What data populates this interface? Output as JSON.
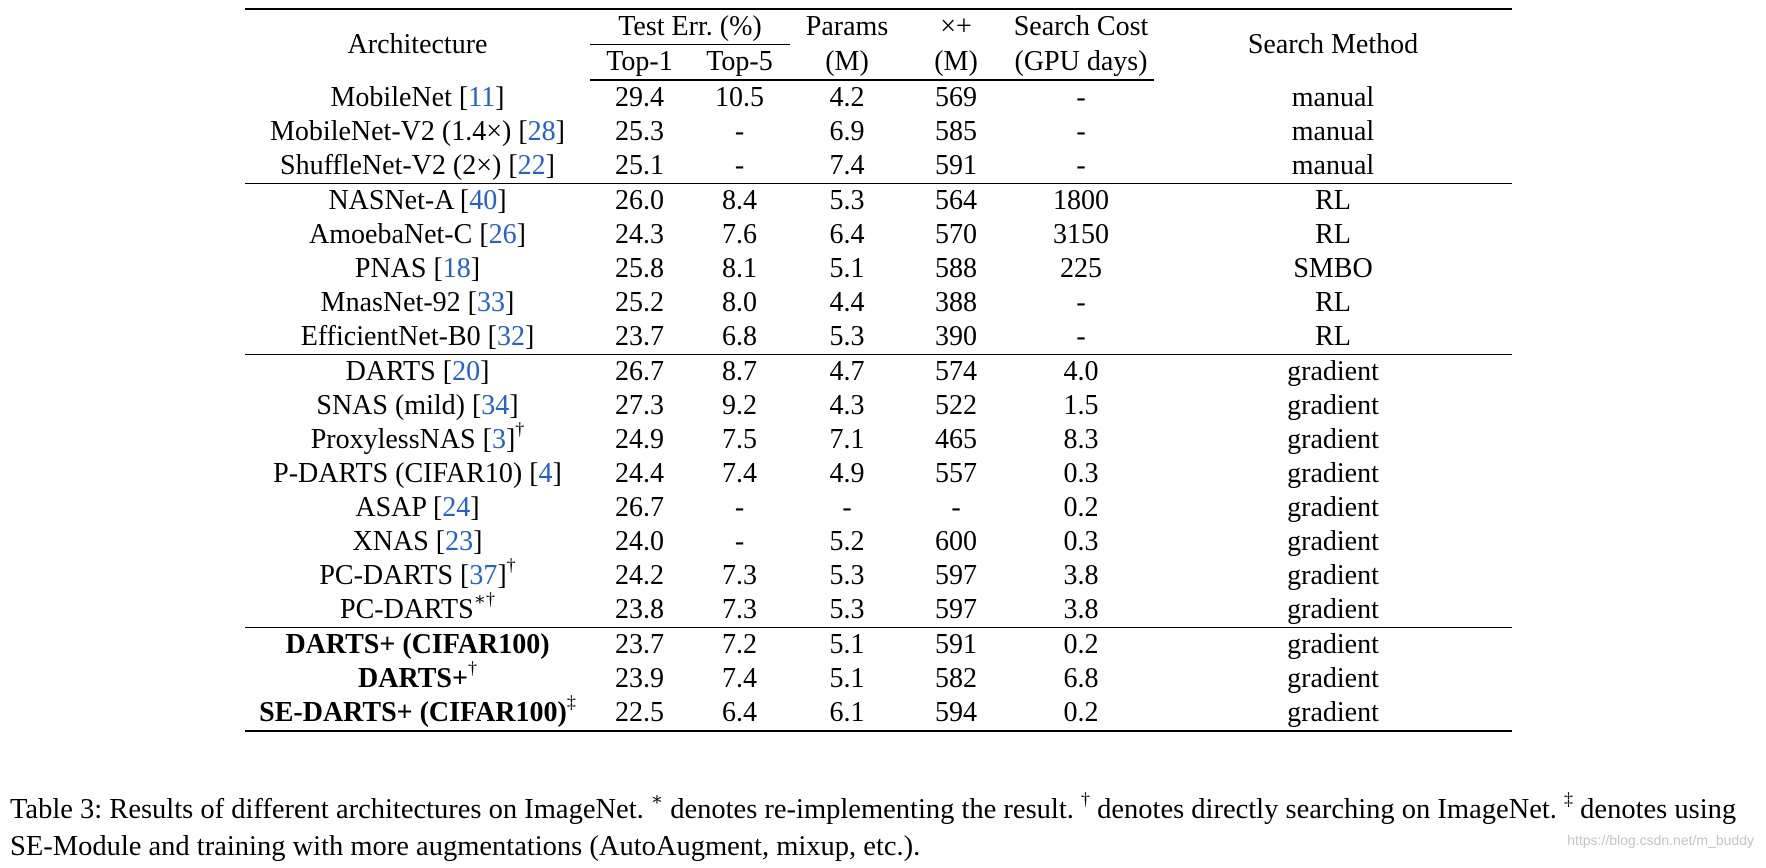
{
  "table": {
    "headers": {
      "architecture": "Architecture",
      "test_err": "Test Err. (%)",
      "top1": "Top-1",
      "top5": "Top-5",
      "params_1": "Params",
      "params_2": "(M)",
      "flops_1": "×+",
      "flops_2": "(M)",
      "cost_1": "Search Cost",
      "cost_2": "(GPU days)",
      "method": "Search Method"
    },
    "rows": [
      {
        "name": "MobileNet ",
        "cite": "11",
        "mark": "",
        "top1": "29.4",
        "top5": "10.5",
        "params": "4.2",
        "flops": "569",
        "cost": "-",
        "method": "manual"
      },
      {
        "name": "MobileNet-V2 (1.4×) ",
        "cite": "28",
        "mark": "",
        "top1": "25.3",
        "top5": "-",
        "params": "6.9",
        "flops": "585",
        "cost": "-",
        "method": "manual"
      },
      {
        "name": "ShuffleNet-V2 (2×) ",
        "cite": "22",
        "mark": "",
        "top1": "25.1",
        "top5": "-",
        "params": "7.4",
        "flops": "591",
        "cost": "-",
        "method": "manual"
      },
      {
        "name": "NASNet-A ",
        "cite": "40",
        "mark": "",
        "top1": "26.0",
        "top5": "8.4",
        "params": "5.3",
        "flops": "564",
        "cost": "1800",
        "method": "RL"
      },
      {
        "name": "AmoebaNet-C ",
        "cite": "26",
        "mark": "",
        "top1": "24.3",
        "top5": "7.6",
        "params": "6.4",
        "flops": "570",
        "cost": "3150",
        "method": "RL"
      },
      {
        "name": "PNAS ",
        "cite": "18",
        "mark": "",
        "top1": "25.8",
        "top5": "8.1",
        "params": "5.1",
        "flops": "588",
        "cost": "225",
        "method": "SMBO"
      },
      {
        "name": "MnasNet-92 ",
        "cite": "33",
        "mark": "",
        "top1": "25.2",
        "top5": "8.0",
        "params": "4.4",
        "flops": "388",
        "cost": "-",
        "method": "RL"
      },
      {
        "name": "EfficientNet-B0 ",
        "cite": "32",
        "mark": "",
        "top1": "23.7",
        "top5": "6.8",
        "params": "5.3",
        "flops": "390",
        "cost": "-",
        "method": "RL"
      },
      {
        "name": "DARTS ",
        "cite": "20",
        "mark": "",
        "top1": "26.7",
        "top5": "8.7",
        "params": "4.7",
        "flops": "574",
        "cost": "4.0",
        "method": "gradient"
      },
      {
        "name": "SNAS (mild) ",
        "cite": "34",
        "mark": "",
        "top1": "27.3",
        "top5": "9.2",
        "params": "4.3",
        "flops": "522",
        "cost": "1.5",
        "method": "gradient"
      },
      {
        "name": "ProxylessNAS ",
        "cite": "3",
        "mark": "†",
        "top1": "24.9",
        "top5": "7.5",
        "params": "7.1",
        "flops": "465",
        "cost": "8.3",
        "method": "gradient"
      },
      {
        "name": "P-DARTS (CIFAR10) ",
        "cite": "4",
        "mark": "",
        "top1": "24.4",
        "top5": "7.4",
        "params": "4.9",
        "flops": "557",
        "cost": "0.3",
        "method": "gradient"
      },
      {
        "name": "ASAP ",
        "cite": "24",
        "mark": "",
        "top1": "26.7",
        "top5": "-",
        "params": "-",
        "flops": "-",
        "cost": "0.2",
        "method": "gradient"
      },
      {
        "name": "XNAS ",
        "cite": "23",
        "mark": "",
        "top1": "24.0",
        "top5": "-",
        "params": "5.2",
        "flops": "600",
        "cost": "0.3",
        "method": "gradient"
      },
      {
        "name": "PC-DARTS ",
        "cite": "37",
        "mark": "†",
        "top1": "24.2",
        "top5": "7.3",
        "params": "5.3",
        "flops": "597",
        "cost": "3.8",
        "method": "gradient"
      },
      {
        "name": "PC-DARTS",
        "cite": "",
        "mark": "∗†",
        "top1": "23.8",
        "top5": "7.3",
        "params": "5.3",
        "flops": "597",
        "cost": "3.8",
        "method": "gradient"
      },
      {
        "name": "DARTS+ (CIFAR100)",
        "cite": "",
        "mark": "",
        "top1": "23.7",
        "top5": "7.2",
        "params": "5.1",
        "flops": "591",
        "cost": "0.2",
        "method": "gradient"
      },
      {
        "name": "DARTS+",
        "cite": "",
        "mark": "†",
        "top1": "23.9",
        "top5": "7.4",
        "params": "5.1",
        "flops": "582",
        "cost": "6.8",
        "method": "gradient"
      },
      {
        "name": "SE-DARTS+ (CIFAR100)",
        "cite": "",
        "mark": "‡",
        "top1": "22.5",
        "top5": "6.4",
        "params": "6.1",
        "flops": "594",
        "cost": "0.2",
        "method": "gradient"
      }
    ]
  },
  "caption": {
    "part1": "Table 3: Results of different architectures on ImageNet. ",
    "star": "∗",
    "part2": " denotes re-implementing the result. ",
    "dagger": "†",
    "part3": " denotes directly searching on ImageNet. ",
    "ddagger": "‡",
    "part4": " denotes using SE-Module and training with more augmentations (AutoAugment, mixup, etc.)."
  },
  "watermark": "https://blog.csdn.net/m_buddy"
}
